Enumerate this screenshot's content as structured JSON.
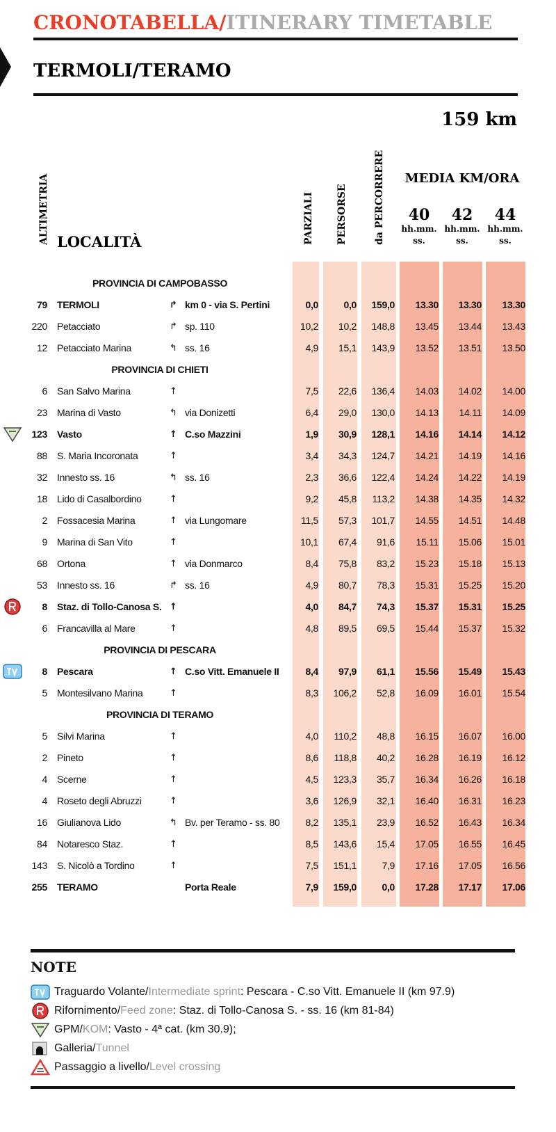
{
  "header": {
    "title_it": "CRONOTABELLA/",
    "title_en": "ITINERARY TIMETABLE",
    "stage": "TERMOLI/TERAMO",
    "distance": "159 km"
  },
  "columns": {
    "altimetria": "ALTIMETRIA",
    "localita": "LOCALITÀ",
    "parziali": "PARZIALI",
    "persorse": "PERSORSE",
    "percorrere": "da PERCORRERE",
    "media": "MEDIA KM/ORA",
    "speeds": [
      40,
      42,
      44
    ],
    "unit": [
      "hh.mm.",
      "ss."
    ]
  },
  "rows": [
    {
      "section": "PROVINCIA DI CAMPOBASSO"
    },
    {
      "alt": 79,
      "place": "TERMOLI",
      "arrow": "↱",
      "road": "km 0 - via S. Pertini",
      "parz": "0,0",
      "pers": "0,0",
      "perc": "159,0",
      "times": [
        "13.30",
        "13.30",
        "13.30"
      ],
      "bold": true
    },
    {
      "alt": 220,
      "place": "Petacciato",
      "arrow": "↱",
      "road": "sp. 110",
      "parz": "10,2",
      "pers": "10,2",
      "perc": "148,8",
      "times": [
        "13.45",
        "13.44",
        "13.43"
      ]
    },
    {
      "alt": 12,
      "place": "Petacciato Marina",
      "arrow": "↰",
      "road": "ss. 16",
      "parz": "4,9",
      "pers": "15,1",
      "perc": "143,9",
      "times": [
        "13.52",
        "13.51",
        "13.50"
      ]
    },
    {
      "section": "PROVINCIA DI CHIETI"
    },
    {
      "alt": 6,
      "place": "San Salvo Marina",
      "arrow": "↑",
      "parz": "7,5",
      "pers": "22,6",
      "perc": "136,4",
      "times": [
        "14.03",
        "14.02",
        "14.00"
      ]
    },
    {
      "alt": 23,
      "place": "Marina di Vasto",
      "arrow": "↰",
      "road": "via Donizetti",
      "parz": "6,4",
      "pers": "29,0",
      "perc": "130,0",
      "times": [
        "14.13",
        "14.11",
        "14.09"
      ]
    },
    {
      "alt": 123,
      "place": "Vasto",
      "arrow": "↑",
      "road": "C.so Mazzini",
      "parz": "1,9",
      "pers": "30,9",
      "perc": "128,1",
      "times": [
        "14.16",
        "14.14",
        "14.12"
      ],
      "bold": true,
      "icon": "gpm"
    },
    {
      "alt": 88,
      "place": "S. Maria Incoronata",
      "arrow": "↑",
      "parz": "3,4",
      "pers": "34,3",
      "perc": "124,7",
      "times": [
        "14.21",
        "14.19",
        "14.16"
      ]
    },
    {
      "alt": 32,
      "place": "Innesto ss. 16",
      "arrow": "↰",
      "road": "ss. 16",
      "parz": "2,3",
      "pers": "36,6",
      "perc": "122,4",
      "times": [
        "14.24",
        "14.22",
        "14.19"
      ]
    },
    {
      "alt": 18,
      "place": "Lido di Casalbordino",
      "arrow": "↑",
      "parz": "9,2",
      "pers": "45,8",
      "perc": "113,2",
      "times": [
        "14.38",
        "14.35",
        "14.32"
      ]
    },
    {
      "alt": 2,
      "place": "Fossacesia Marina",
      "arrow": "↑",
      "road": "via Lungomare",
      "parz": "11,5",
      "pers": "57,3",
      "perc": "101,7",
      "times": [
        "14.55",
        "14.51",
        "14.48"
      ]
    },
    {
      "alt": 9,
      "place": "Marina di San Vito",
      "arrow": "↑",
      "parz": "10,1",
      "pers": "67,4",
      "perc": "91,6",
      "times": [
        "15.11",
        "15.06",
        "15.01"
      ]
    },
    {
      "alt": 68,
      "place": "Ortona",
      "arrow": "↑",
      "road": "via Donmarco",
      "parz": "8,4",
      "pers": "75,8",
      "perc": "83,2",
      "times": [
        "15.23",
        "15.18",
        "15.13"
      ]
    },
    {
      "alt": 53,
      "place": "Innesto ss. 16",
      "arrow": "↱",
      "road": "ss. 16",
      "parz": "4,9",
      "pers": "80,7",
      "perc": "78,3",
      "times": [
        "15.31",
        "15.25",
        "15.20"
      ]
    },
    {
      "alt": 8,
      "place": "Staz. di Tollo-Canosa S.",
      "arrow": "↑",
      "parz": "4,0",
      "pers": "84,7",
      "perc": "74,3",
      "times": [
        "15.37",
        "15.31",
        "15.25"
      ],
      "bold": true,
      "icon": "feed"
    },
    {
      "alt": 6,
      "place": "Francavilla al Mare",
      "arrow": "↑",
      "parz": "4,8",
      "pers": "89,5",
      "perc": "69,5",
      "times": [
        "15.44",
        "15.37",
        "15.32"
      ]
    },
    {
      "section": "PROVINCIA DI PESCARA"
    },
    {
      "alt": 8,
      "place": "Pescara",
      "arrow": "↑",
      "road": "C.so Vitt. Emanuele II",
      "parz": "8,4",
      "pers": "97,9",
      "perc": "61,1",
      "times": [
        "15.56",
        "15.49",
        "15.43"
      ],
      "bold": true,
      "icon": "sprint"
    },
    {
      "alt": 5,
      "place": "Montesilvano Marina",
      "arrow": "↑",
      "parz": "8,3",
      "pers": "106,2",
      "perc": "52,8",
      "times": [
        "16.09",
        "16.01",
        "15.54"
      ]
    },
    {
      "section": "PROVINCIA DI TERAMO"
    },
    {
      "alt": 5,
      "place": "Silvi Marina",
      "arrow": "↑",
      "parz": "4,0",
      "pers": "110,2",
      "perc": "48,8",
      "times": [
        "16.15",
        "16.07",
        "16.00"
      ]
    },
    {
      "alt": 2,
      "place": "Pineto",
      "arrow": "↑",
      "parz": "8,6",
      "pers": "118,8",
      "perc": "40,2",
      "times": [
        "16.28",
        "16.19",
        "16.12"
      ]
    },
    {
      "alt": 4,
      "place": "Scerne",
      "arrow": "↑",
      "parz": "4,5",
      "pers": "123,3",
      "perc": "35,7",
      "times": [
        "16.34",
        "16.26",
        "16.18"
      ]
    },
    {
      "alt": 4,
      "place": "Roseto degli Abruzzi",
      "arrow": "↑",
      "parz": "3,6",
      "pers": "126,9",
      "perc": "32,1",
      "times": [
        "16.40",
        "16.31",
        "16.23"
      ]
    },
    {
      "alt": 16,
      "place": "Giulianova Lido",
      "arrow": "↰",
      "road": "Bv. per Teramo - ss. 80",
      "parz": "8,2",
      "pers": "135,1",
      "perc": "23,9",
      "times": [
        "16.52",
        "16.43",
        "16.34"
      ]
    },
    {
      "alt": 84,
      "place": "Notaresco Staz.",
      "arrow": "↑",
      "parz": "8,5",
      "pers": "143,6",
      "perc": "15,4",
      "times": [
        "17.05",
        "16.55",
        "16.45"
      ]
    },
    {
      "alt": 143,
      "place": "S. Nicolò a Tordino",
      "arrow": "↑",
      "parz": "7,5",
      "pers": "151,1",
      "perc": "7,9",
      "times": [
        "17.16",
        "17.05",
        "16.56"
      ]
    },
    {
      "alt": 255,
      "place": "TERAMO",
      "road": "Porta Reale",
      "parz": "7,9",
      "pers": "159,0",
      "perc": "0,0",
      "times": [
        "17.28",
        "17.17",
        "17.06"
      ],
      "bold": true
    }
  ],
  "notes": {
    "title": "NOTE",
    "items": [
      {
        "icon": "sprint",
        "it": "Traguardo Volante/",
        "en": "Intermediate sprint",
        "rest": ": Pescara - C.so Vitt. Emanuele II (km 97.9)"
      },
      {
        "icon": "feed",
        "it": "Rifornimento/",
        "en": "Feed zone",
        "rest": ": Staz. di Tollo-Canosa S. - ss. 16 (km 81-84)"
      },
      {
        "icon": "gpm",
        "it": "GPM/",
        "en": "KOM",
        "rest": ": Vasto - 4ª cat. (km 30.9);"
      },
      {
        "icon": "tunnel",
        "it": "Galleria/",
        "en": "Tunnel"
      },
      {
        "icon": "crossing",
        "it": "Passaggio a livello/",
        "en": "Level crossing"
      }
    ]
  }
}
